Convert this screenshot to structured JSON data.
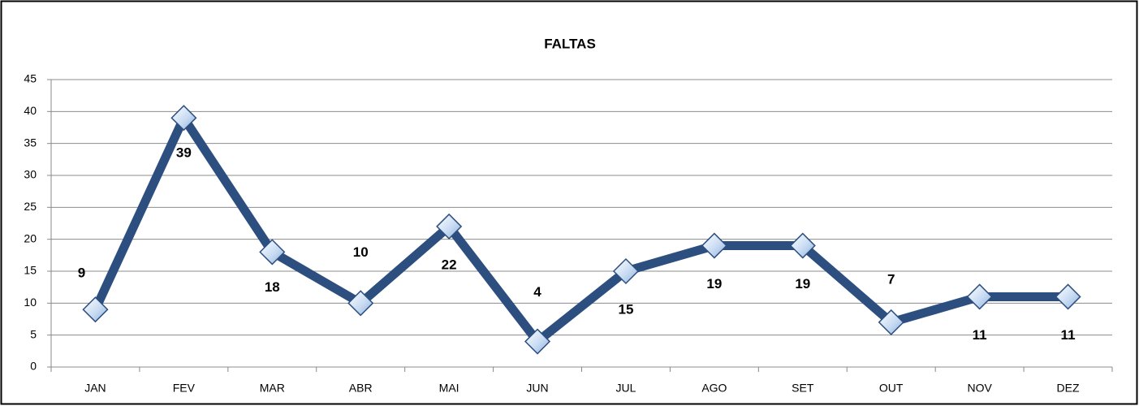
{
  "chart_data": {
    "type": "line",
    "title": "FALTAS",
    "categories": [
      "JAN",
      "FEV",
      "MAR",
      "ABR",
      "MAI",
      "JUN",
      "JUL",
      "AGO",
      "SET",
      "OUT",
      "NOV",
      "DEZ"
    ],
    "values": [
      9,
      39,
      18,
      10,
      22,
      4,
      15,
      19,
      19,
      7,
      11,
      11
    ],
    "color": "#2c4f80",
    "ylim": [
      0,
      45
    ],
    "yticks": [
      0,
      5,
      10,
      15,
      20,
      25,
      30,
      35,
      40,
      45
    ],
    "grid": true
  }
}
